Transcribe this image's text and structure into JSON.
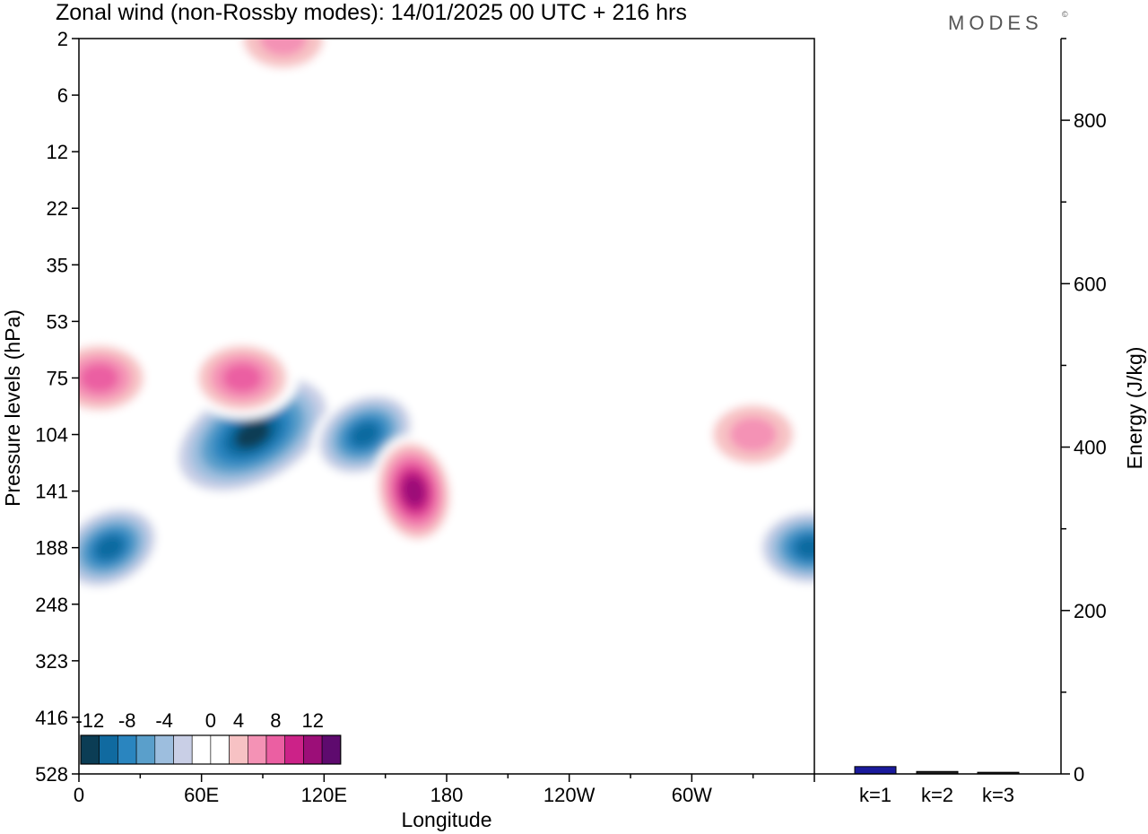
{
  "title": "Zonal wind (non-Rossby modes):  14/01/2025  00 UTC  + 216 hrs",
  "logo": "MODES",
  "chart_data": [
    {
      "type": "heatmap",
      "xlabel": "Longitude",
      "ylabel": "Pressure levels (hPa)",
      "x_tick_labels": [
        "0",
        "60E",
        "120E",
        "180",
        "120W",
        "60W"
      ],
      "x_ticks_deg": [
        0,
        60,
        120,
        180,
        240,
        300
      ],
      "xlim_deg": [
        0,
        360
      ],
      "y_tick_labels": [
        "2",
        "6",
        "12",
        "22",
        "35",
        "53",
        "75",
        "104",
        "141",
        "188",
        "248",
        "323",
        "416",
        "528"
      ],
      "colorbar": {
        "labels": [
          "-12",
          "-8",
          "-4",
          "0",
          "4",
          "8",
          "12"
        ],
        "levels": [
          -14,
          -12,
          -10,
          -8,
          -6,
          -4,
          -2,
          2,
          4,
          6,
          8,
          10,
          12,
          14
        ],
        "colors": [
          "#0b3d55",
          "#106aa0",
          "#2a85bf",
          "#5a9fcb",
          "#9dbede",
          "#c9cfe6",
          "#ffffff",
          "#ffffff",
          "#f7c2c4",
          "#f492b5",
          "#eb5fa2",
          "#cc2288",
          "#9c0e78",
          "#5e0a6e"
        ]
      },
      "features": [
        {
          "kind": "negative",
          "value": -14,
          "lon": 85,
          "level": "104",
          "desc": "core"
        },
        {
          "kind": "negative",
          "value": -12,
          "lon": 15,
          "level": "188"
        },
        {
          "kind": "negative",
          "value": -12,
          "lon": 140,
          "level": "104"
        },
        {
          "kind": "negative",
          "value": -12,
          "lon": 358,
          "level": "188"
        },
        {
          "kind": "positive",
          "value": 12,
          "lon": 164,
          "level": "141"
        },
        {
          "kind": "positive",
          "value": 8,
          "lon": 80,
          "level": "75"
        },
        {
          "kind": "positive",
          "value": 8,
          "lon": 10,
          "level": "75"
        },
        {
          "kind": "positive",
          "value": 6,
          "lon": 330,
          "level": "104"
        },
        {
          "kind": "positive",
          "value": 6,
          "lon": 100,
          "level": "2"
        }
      ]
    },
    {
      "type": "bar",
      "ylabel": "Energy (J/kg)",
      "categories": [
        "k=1",
        "k=2",
        "k=3"
      ],
      "values": [
        9,
        3,
        2
      ],
      "ylim": [
        0,
        900
      ],
      "y_tick_labels": [
        "0",
        "200",
        "400",
        "600",
        "800"
      ],
      "y_ticks": [
        0,
        200,
        400,
        600,
        800
      ],
      "bar_color": "#1a1a9c"
    }
  ]
}
